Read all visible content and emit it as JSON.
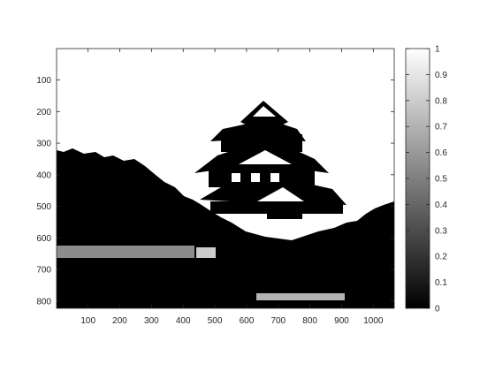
{
  "chart_data": {
    "type": "heatmap",
    "title": "",
    "xlabel": "",
    "ylabel": "",
    "image_content": "binary black-and-white photograph of a multi-tiered Japanese castle surrounded by trees",
    "x_ticks": [
      100,
      200,
      300,
      400,
      500,
      600,
      700,
      800,
      900,
      1000
    ],
    "y_ticks": [
      100,
      200,
      300,
      400,
      500,
      600,
      700,
      800
    ],
    "xlim": [
      0.5,
      1066
    ],
    "ylim": [
      0.5,
      823
    ],
    "y_direction": "reverse",
    "grid": false,
    "colorbar": {
      "colormap": "gray",
      "range": [
        0,
        1
      ],
      "ticks": [
        0,
        0.1,
        0.2,
        0.3,
        0.4,
        0.5,
        0.6,
        0.7,
        0.8,
        0.9,
        1
      ],
      "tick_labels": [
        "0",
        "0.1",
        "0.2",
        "0.3",
        "0.4",
        "0.5",
        "0.6",
        "0.7",
        "0.8",
        "0.9",
        "1"
      ]
    }
  }
}
